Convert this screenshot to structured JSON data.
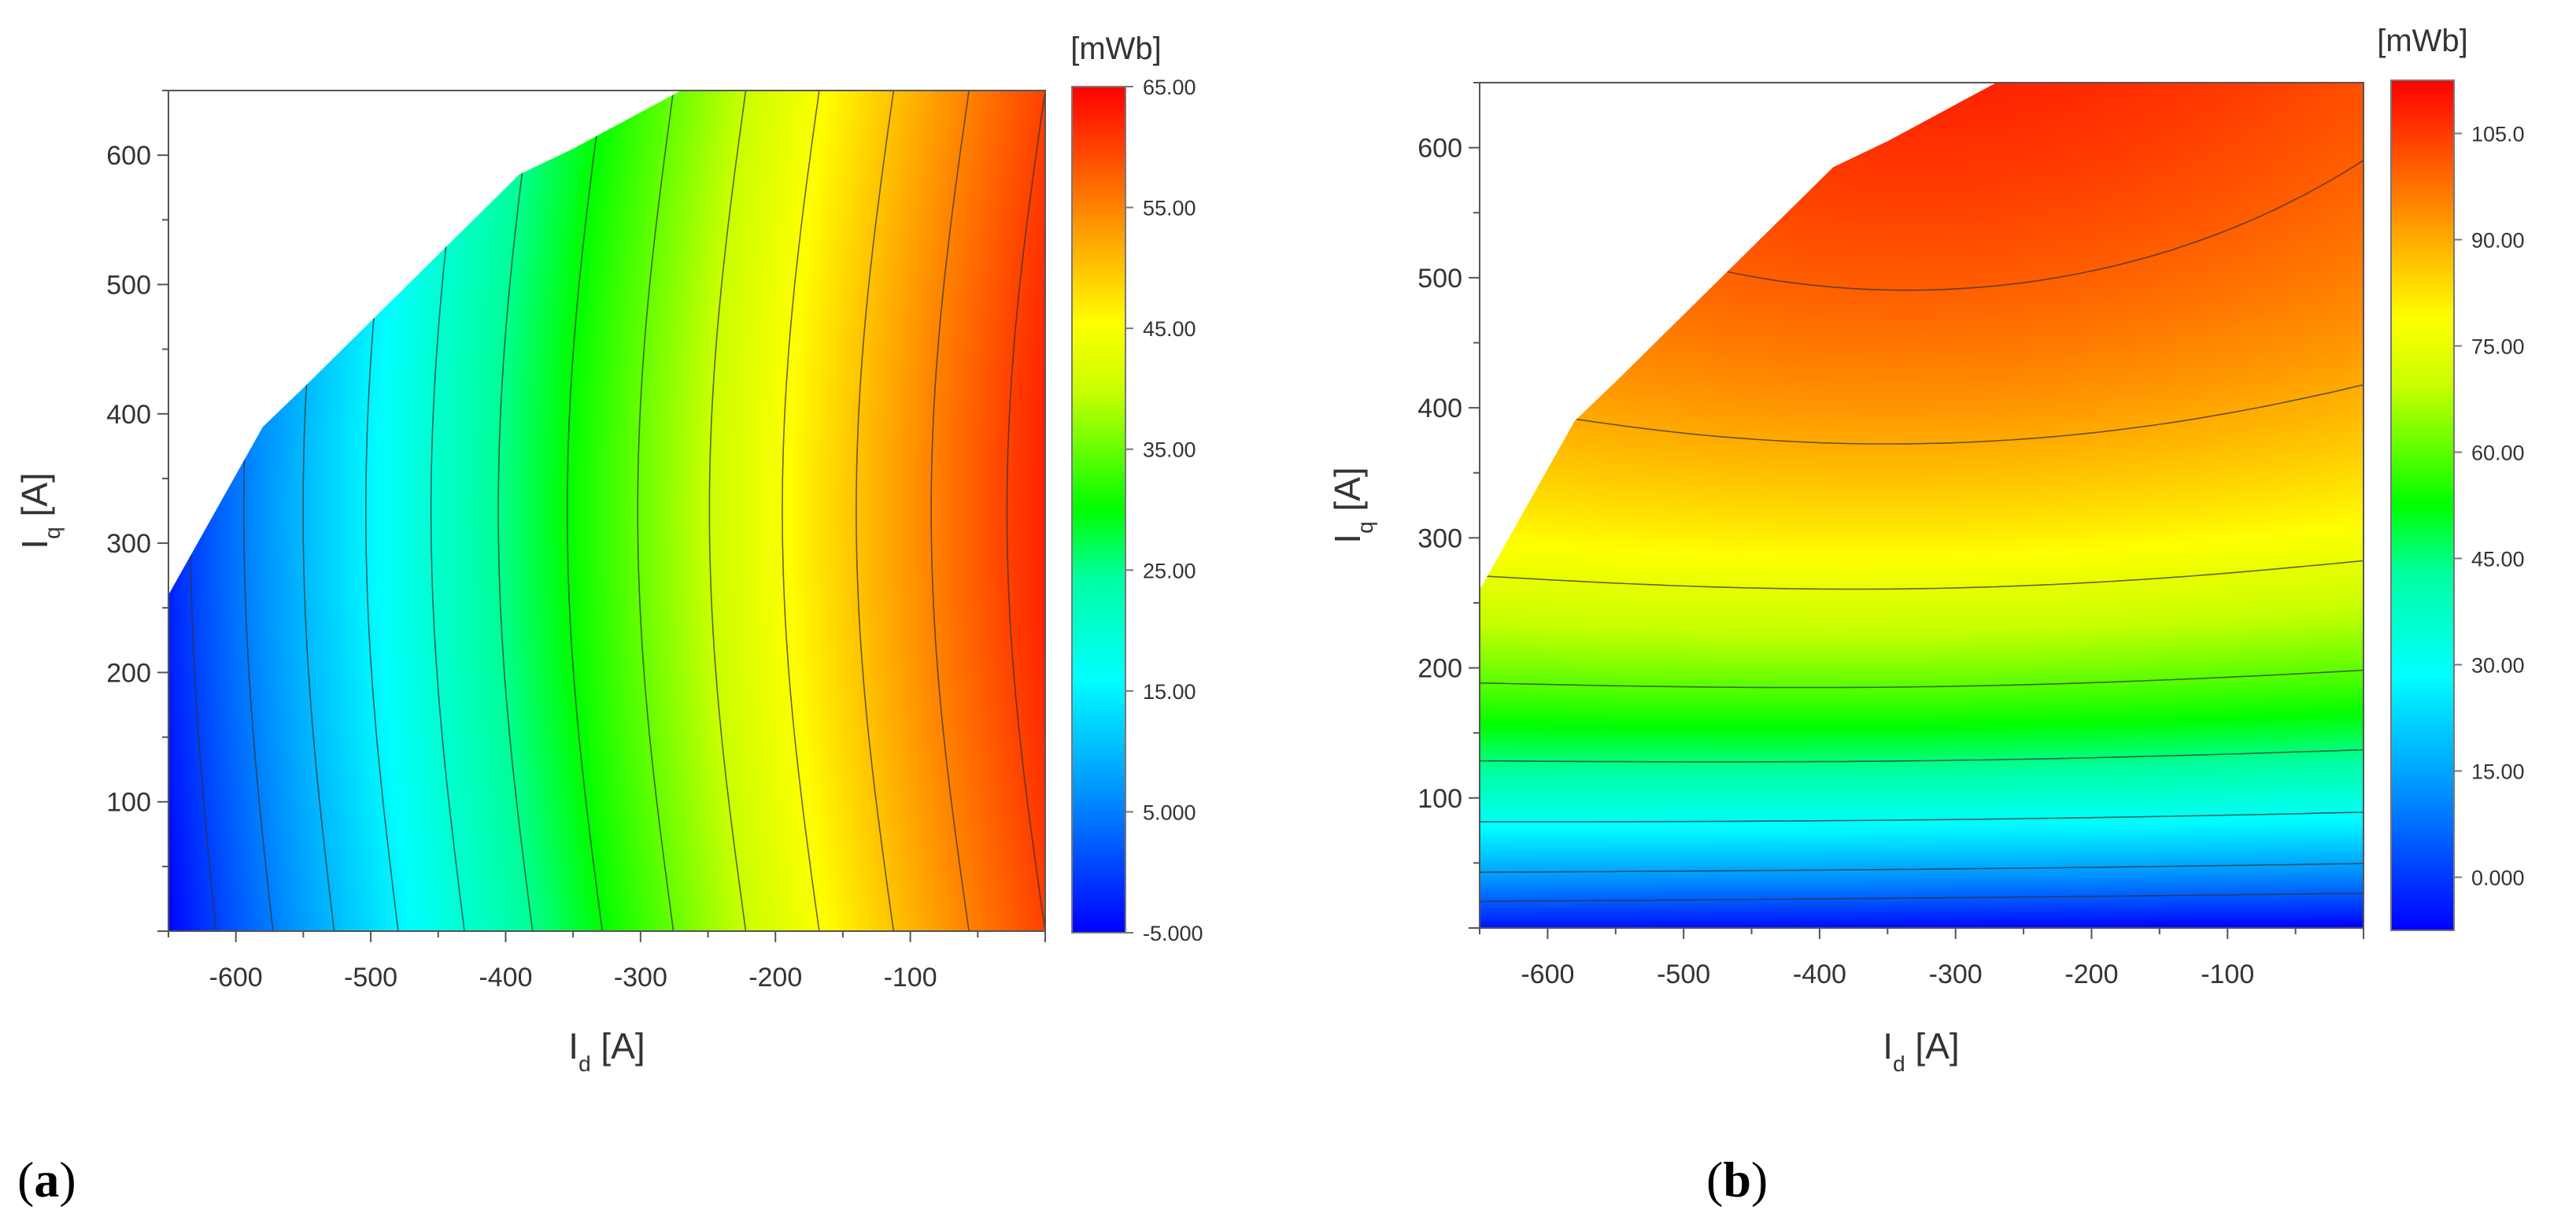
{
  "chart_data": [
    {
      "id": "a",
      "type": "heatmap",
      "subplot_label": "a",
      "xlabel_main": "I",
      "xlabel_sub": "d",
      "xlabel_unit": " [A]",
      "ylabel_main": "I",
      "ylabel_sub": "q",
      "ylabel_unit": " [A]",
      "xlim": [
        -650,
        0
      ],
      "ylim": [
        0,
        650
      ],
      "x_ticks": [
        -600,
        -500,
        -400,
        -300,
        -200,
        -100
      ],
      "x_tick_labels": [
        "-600",
        "-500",
        "-400",
        "-300",
        "-200",
        "-100"
      ],
      "y_ticks": [
        100,
        200,
        300,
        400,
        500,
        600
      ],
      "y_tick_labels": [
        "100",
        "200",
        "300",
        "400",
        "500",
        "600"
      ],
      "colorbar_unit": "[mWb]",
      "colorbar_range": [
        -5,
        65
      ],
      "colorbar_ticks": [
        -5,
        5,
        15,
        25,
        35,
        45,
        55,
        65
      ],
      "colorbar_tick_labels": [
        "-5.000",
        "5.000",
        "15.00",
        "25.00",
        "35.00",
        "45.00",
        "55.00",
        "65.00"
      ],
      "data_boundary": [
        [
          -650,
          260
        ],
        [
          -580,
          390
        ],
        [
          -550,
          420
        ],
        [
          -390,
          585
        ],
        [
          -350,
          605
        ],
        [
          -270,
          650
        ]
      ],
      "field_description": "value increases mainly with Id, from about -5 at Id=-650 to about 65 at Id=0",
      "contour_step": 5,
      "grid": false
    },
    {
      "id": "b",
      "type": "heatmap",
      "subplot_label": "b",
      "xlabel_main": "I",
      "xlabel_sub": "d",
      "xlabel_unit": " [A]",
      "ylabel_main": "I",
      "ylabel_sub": "q",
      "ylabel_unit": " [A]",
      "xlim": [
        -650,
        0
      ],
      "ylim": [
        0,
        650
      ],
      "x_ticks": [
        -600,
        -500,
        -400,
        -300,
        -200,
        -100
      ],
      "x_tick_labels": [
        "-600",
        "-500",
        "-400",
        "-300",
        "-200",
        "-100"
      ],
      "y_ticks": [
        100,
        200,
        300,
        400,
        500,
        600
      ],
      "y_tick_labels": [
        "100",
        "200",
        "300",
        "400",
        "500",
        "600"
      ],
      "colorbar_unit": "[mWb]",
      "colorbar_range": [
        -7.5,
        112.5
      ],
      "colorbar_ticks": [
        0,
        15,
        30,
        45,
        60,
        75,
        90,
        105
      ],
      "colorbar_tick_labels": [
        "0.000",
        "15.00",
        "30.00",
        "45.00",
        "60.00",
        "75.00",
        "90.00",
        "105.0"
      ],
      "data_boundary": [
        [
          -650,
          260
        ],
        [
          -580,
          390
        ],
        [
          -550,
          420
        ],
        [
          -390,
          585
        ],
        [
          -350,
          605
        ],
        [
          -270,
          650
        ]
      ],
      "field_description": "value increases mainly with Iq, from about -5 at Iq=0 to about 108 at Iq=650, saturating near the top",
      "contour_step": 30,
      "grid": false
    }
  ]
}
